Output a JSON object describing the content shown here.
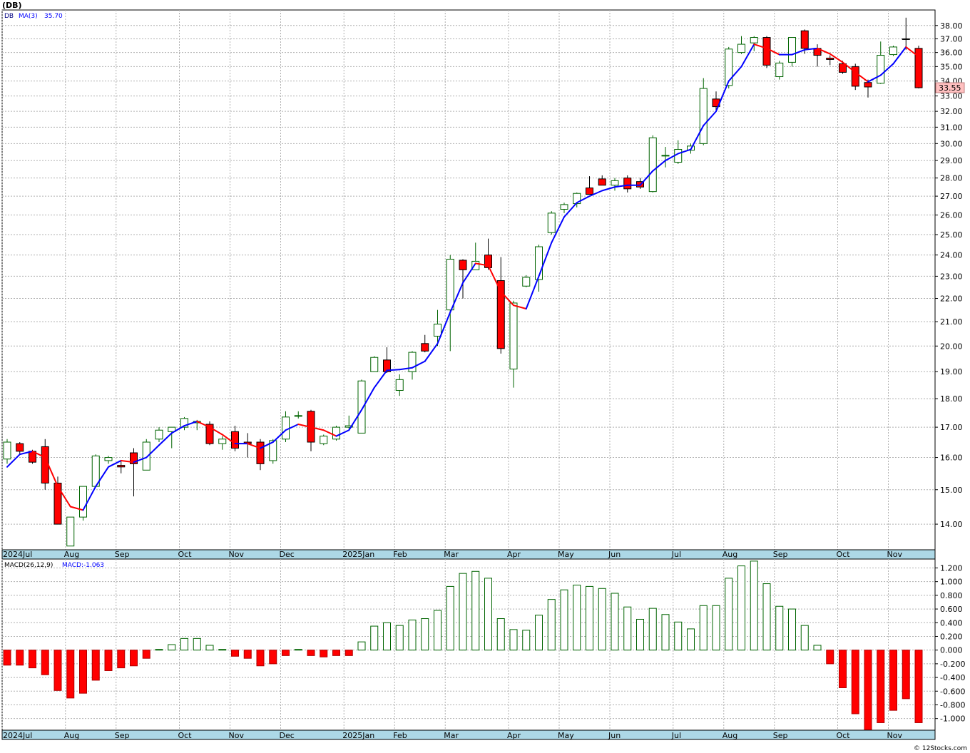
{
  "title": "(DB)",
  "ticker": "DB",
  "ma_label": "MA(3)",
  "ma_value": "35.70",
  "last_price": "33.55",
  "macd_label": "MACD(26,12,9)",
  "macd_value_label": "MACD:-1.063",
  "copyright": "© 12Stocks.com",
  "colors": {
    "up_fill": "#ffffff",
    "up_stroke": "#006400",
    "down_fill": "#ff0000",
    "down_stroke": "#000000",
    "ma_up": "#0000ff",
    "ma_down": "#ff0000",
    "macd_pos_fill": "#ffffff",
    "macd_pos_stroke": "#006400",
    "macd_neg_fill": "#ff0000",
    "axis_band": "#add8e6",
    "grid": "#b0b0b0",
    "price_label_bg": "#ffc0c0"
  },
  "chart_data": [
    {
      "type": "candlestick",
      "scale": "log",
      "ylim": [
        13.3,
        39.2
      ],
      "y_ticks": [
        "14.00",
        "15.00",
        "16.00",
        "17.00",
        "18.00",
        "19.00",
        "20.00",
        "21.00",
        "22.00",
        "23.00",
        "24.00",
        "25.00",
        "26.00",
        "27.00",
        "28.00",
        "29.00",
        "30.00",
        "31.00",
        "32.00",
        "33.00",
        "34.00",
        "35.00",
        "36.00",
        "37.00",
        "38.00"
      ],
      "x_labels": [
        {
          "i": 0,
          "label": "2024Jul"
        },
        {
          "i": 5,
          "label": "Aug"
        },
        {
          "i": 9,
          "label": "Sep"
        },
        {
          "i": 14,
          "label": "Oct"
        },
        {
          "i": 18,
          "label": "Nov"
        },
        {
          "i": 22,
          "label": "Dec"
        },
        {
          "i": 27,
          "label": "2025Jan"
        },
        {
          "i": 31,
          "label": "Feb"
        },
        {
          "i": 35,
          "label": "Mar"
        },
        {
          "i": 40,
          "label": "Apr"
        },
        {
          "i": 44,
          "label": "May"
        },
        {
          "i": 48,
          "label": "Jun"
        },
        {
          "i": 53,
          "label": "Jul"
        },
        {
          "i": 57,
          "label": "Aug"
        },
        {
          "i": 61,
          "label": "Sep"
        },
        {
          "i": 66,
          "label": "Oct"
        },
        {
          "i": 70,
          "label": "Nov"
        }
      ],
      "candles": [
        {
          "o": 15.95,
          "h": 16.6,
          "l": 15.8,
          "c": 16.5
        },
        {
          "o": 16.45,
          "h": 16.5,
          "l": 16.1,
          "c": 16.2
        },
        {
          "o": 16.2,
          "h": 16.25,
          "l": 15.8,
          "c": 15.85
        },
        {
          "o": 16.35,
          "h": 16.6,
          "l": 15.0,
          "c": 15.2
        },
        {
          "o": 15.2,
          "h": 15.4,
          "l": 14.0,
          "c": 14.0
        },
        {
          "o": 13.4,
          "h": 14.2,
          "l": 13.4,
          "c": 14.2
        },
        {
          "o": 14.2,
          "h": 15.1,
          "l": 14.1,
          "c": 15.1
        },
        {
          "o": 15.1,
          "h": 16.1,
          "l": 15.1,
          "c": 16.05
        },
        {
          "o": 15.9,
          "h": 16.05,
          "l": 15.8,
          "c": 16.0
        },
        {
          "o": 15.75,
          "h": 15.9,
          "l": 15.5,
          "c": 15.7
        },
        {
          "o": 16.15,
          "h": 16.3,
          "l": 14.8,
          "c": 15.8
        },
        {
          "o": 15.6,
          "h": 16.6,
          "l": 15.6,
          "c": 16.5
        },
        {
          "o": 16.6,
          "h": 17.0,
          "l": 16.5,
          "c": 16.9
        },
        {
          "o": 16.85,
          "h": 17.0,
          "l": 16.3,
          "c": 17.0
        },
        {
          "o": 17.0,
          "h": 17.35,
          "l": 16.9,
          "c": 17.3
        },
        {
          "o": 17.15,
          "h": 17.25,
          "l": 16.9,
          "c": 17.2
        },
        {
          "o": 17.1,
          "h": 17.2,
          "l": 16.4,
          "c": 16.45
        },
        {
          "o": 16.45,
          "h": 16.7,
          "l": 16.25,
          "c": 16.6
        },
        {
          "o": 16.85,
          "h": 17.05,
          "l": 16.2,
          "c": 16.3
        },
        {
          "o": 16.5,
          "h": 16.8,
          "l": 16.0,
          "c": 16.45
        },
        {
          "o": 16.5,
          "h": 16.6,
          "l": 15.6,
          "c": 15.8
        },
        {
          "o": 15.9,
          "h": 16.6,
          "l": 15.8,
          "c": 16.55
        },
        {
          "o": 16.6,
          "h": 17.55,
          "l": 16.5,
          "c": 17.35
        },
        {
          "o": 17.4,
          "h": 17.55,
          "l": 17.3,
          "c": 17.4
        },
        {
          "o": 17.55,
          "h": 17.6,
          "l": 16.2,
          "c": 16.5
        },
        {
          "o": 16.45,
          "h": 16.75,
          "l": 16.4,
          "c": 16.7
        },
        {
          "o": 16.6,
          "h": 17.05,
          "l": 16.55,
          "c": 17.0
        },
        {
          "o": 17.0,
          "h": 17.4,
          "l": 16.95,
          "c": 17.05
        },
        {
          "o": 16.8,
          "h": 18.7,
          "l": 16.8,
          "c": 18.65
        },
        {
          "o": 19.0,
          "h": 19.6,
          "l": 19.0,
          "c": 19.55
        },
        {
          "o": 19.45,
          "h": 19.95,
          "l": 18.95,
          "c": 19.0
        },
        {
          "o": 18.3,
          "h": 18.9,
          "l": 18.1,
          "c": 18.7
        },
        {
          "o": 19.0,
          "h": 19.8,
          "l": 18.7,
          "c": 19.75
        },
        {
          "o": 20.1,
          "h": 20.45,
          "l": 19.75,
          "c": 19.8
        },
        {
          "o": 20.4,
          "h": 21.5,
          "l": 20.0,
          "c": 20.9
        },
        {
          "o": 21.5,
          "h": 24.0,
          "l": 19.8,
          "c": 23.8
        },
        {
          "o": 23.75,
          "h": 23.8,
          "l": 22.0,
          "c": 23.3
        },
        {
          "o": 23.3,
          "h": 24.6,
          "l": 23.3,
          "c": 23.7
        },
        {
          "o": 24.0,
          "h": 24.8,
          "l": 23.3,
          "c": 23.4
        },
        {
          "o": 22.8,
          "h": 23.9,
          "l": 19.7,
          "c": 19.9
        },
        {
          "o": 19.1,
          "h": 21.9,
          "l": 18.4,
          "c": 21.8
        },
        {
          "o": 22.55,
          "h": 23.05,
          "l": 22.5,
          "c": 22.95
        },
        {
          "o": 22.85,
          "h": 24.5,
          "l": 22.3,
          "c": 24.4
        },
        {
          "o": 25.1,
          "h": 26.2,
          "l": 25.0,
          "c": 26.1
        },
        {
          "o": 26.3,
          "h": 26.65,
          "l": 26.1,
          "c": 26.55
        },
        {
          "o": 26.6,
          "h": 27.2,
          "l": 26.4,
          "c": 27.15
        },
        {
          "o": 27.45,
          "h": 28.1,
          "l": 27.2,
          "c": 27.1
        },
        {
          "o": 27.95,
          "h": 28.15,
          "l": 27.6,
          "c": 27.6
        },
        {
          "o": 27.6,
          "h": 28.0,
          "l": 27.3,
          "c": 27.85
        },
        {
          "o": 28.0,
          "h": 28.15,
          "l": 27.2,
          "c": 27.4
        },
        {
          "o": 27.8,
          "h": 28.0,
          "l": 27.4,
          "c": 27.5
        },
        {
          "o": 27.25,
          "h": 30.5,
          "l": 27.2,
          "c": 30.35
        },
        {
          "o": 29.3,
          "h": 29.8,
          "l": 28.6,
          "c": 29.3
        },
        {
          "o": 28.9,
          "h": 30.2,
          "l": 28.8,
          "c": 29.65
        },
        {
          "o": 29.6,
          "h": 30.0,
          "l": 29.4,
          "c": 29.85
        },
        {
          "o": 30.0,
          "h": 34.2,
          "l": 29.9,
          "c": 33.5
        },
        {
          "o": 32.8,
          "h": 33.3,
          "l": 32.0,
          "c": 32.3
        },
        {
          "o": 33.7,
          "h": 36.4,
          "l": 33.5,
          "c": 36.25
        },
        {
          "o": 36.0,
          "h": 37.2,
          "l": 35.9,
          "c": 36.6
        },
        {
          "o": 36.7,
          "h": 37.2,
          "l": 36.1,
          "c": 37.1
        },
        {
          "o": 37.1,
          "h": 37.2,
          "l": 34.9,
          "c": 35.1
        },
        {
          "o": 34.3,
          "h": 35.4,
          "l": 34.1,
          "c": 35.25
        },
        {
          "o": 35.3,
          "h": 37.1,
          "l": 35.0,
          "c": 37.1
        },
        {
          "o": 37.6,
          "h": 37.7,
          "l": 35.9,
          "c": 36.3
        },
        {
          "o": 36.3,
          "h": 36.6,
          "l": 35.0,
          "c": 35.8
        },
        {
          "o": 35.6,
          "h": 35.8,
          "l": 35.1,
          "c": 35.5
        },
        {
          "o": 35.2,
          "h": 35.4,
          "l": 34.5,
          "c": 34.6
        },
        {
          "o": 35.0,
          "h": 35.2,
          "l": 33.4,
          "c": 33.65
        },
        {
          "o": 33.9,
          "h": 34.1,
          "l": 32.9,
          "c": 33.6
        },
        {
          "o": 33.85,
          "h": 36.8,
          "l": 33.8,
          "c": 35.8
        },
        {
          "o": 35.85,
          "h": 36.5,
          "l": 35.75,
          "c": 36.4
        },
        {
          "o": 37.0,
          "h": 38.6,
          "l": 36.2,
          "c": 36.95
        },
        {
          "o": 36.3,
          "h": 36.5,
          "l": 33.5,
          "c": 33.55
        }
      ],
      "ma3": [
        15.7,
        16.1,
        16.2,
        16.0,
        15.1,
        14.5,
        14.4,
        15.1,
        15.7,
        15.9,
        15.85,
        16.0,
        16.4,
        16.8,
        17.05,
        17.2,
        17.0,
        16.75,
        16.45,
        16.45,
        16.3,
        16.5,
        16.9,
        17.1,
        17.0,
        16.9,
        16.7,
        16.9,
        17.6,
        18.4,
        19.05,
        19.08,
        19.15,
        19.4,
        20.1,
        21.4,
        22.7,
        23.6,
        23.5,
        22.3,
        21.7,
        21.55,
        23.0,
        24.6,
        25.9,
        26.65,
        27.0,
        27.3,
        27.5,
        27.6,
        27.6,
        28.4,
        29.0,
        29.4,
        29.65,
        31.1,
        32.0,
        34.0,
        35.0,
        36.6,
        36.3,
        35.85,
        35.85,
        36.2,
        36.3,
        35.9,
        35.3,
        34.6,
        33.95,
        34.4,
        35.2,
        36.4,
        35.7
      ],
      "series": [
        {
          "name": "DB",
          "values_key": "candles"
        },
        {
          "name": "MA(3)",
          "values_key": "ma3"
        }
      ]
    },
    {
      "type": "bar",
      "title": "MACD(26,12,9)",
      "ylim": [
        -1.17,
        1.33
      ],
      "y_ticks": [
        "-1.000",
        "-0.800",
        "-0.600",
        "-0.400",
        "-0.200",
        "0.000",
        "0.200",
        "0.400",
        "0.600",
        "0.800",
        "1.000",
        "1.200"
      ],
      "values": [
        -0.22,
        -0.22,
        -0.26,
        -0.36,
        -0.59,
        -0.7,
        -0.63,
        -0.44,
        -0.3,
        -0.26,
        -0.23,
        -0.12,
        0.01,
        0.08,
        0.17,
        0.17,
        0.07,
        0.01,
        -0.09,
        -0.12,
        -0.23,
        -0.2,
        -0.08,
        0.01,
        -0.08,
        -0.1,
        -0.08,
        -0.08,
        0.12,
        0.35,
        0.4,
        0.36,
        0.44,
        0.46,
        0.58,
        0.93,
        1.12,
        1.15,
        1.05,
        0.46,
        0.3,
        0.29,
        0.51,
        0.74,
        0.88,
        0.95,
        0.93,
        0.9,
        0.83,
        0.63,
        0.45,
        0.61,
        0.52,
        0.41,
        0.31,
        0.65,
        0.65,
        1.05,
        1.23,
        1.3,
        0.97,
        0.64,
        0.6,
        0.36,
        0.07,
        -0.2,
        -0.55,
        -0.93,
        -1.17,
        -1.06,
        -0.88,
        -0.71,
        -1.06
      ]
    }
  ]
}
